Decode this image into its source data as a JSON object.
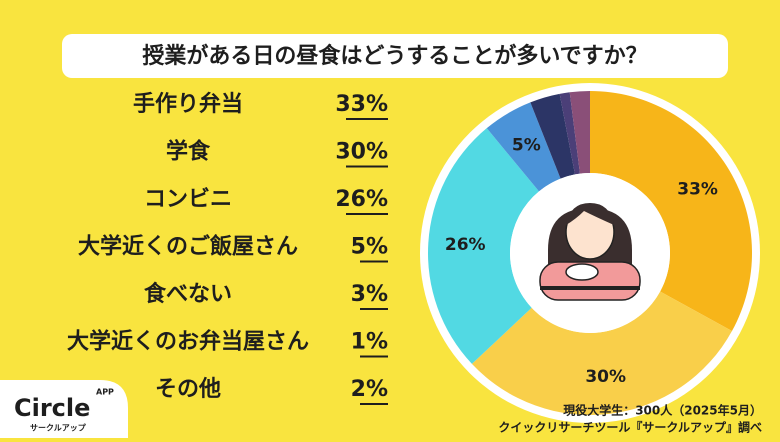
{
  "chart_data": {
    "type": "pie",
    "donut": true,
    "title": "授業がある日の昼食はどうすることが多いですか？",
    "categories": [
      "手作り弁当",
      "学食",
      "コンビニ",
      "大学近くのご飯屋さん",
      "食べない",
      "大学近くのお弁当屋さん",
      "その他"
    ],
    "values": [
      33,
      30,
      26,
      5,
      3,
      1,
      2
    ],
    "value_labels": [
      "33%",
      "30%",
      "26%",
      "5%",
      "3%",
      "1%",
      "2%"
    ],
    "colors": [
      "#f7b519",
      "#f9cf4a",
      "#52d9e3",
      "#4b93d8",
      "#2c3566",
      "#4b3f78",
      "#8a4f78"
    ],
    "source": [
      "現役大学生：300人（2025年5月）",
      "クイックリサーチツール『サークルアップ』調べ"
    ]
  },
  "logo": {
    "name": "Circle",
    "badge": "APP",
    "kana": "サークルアップ"
  }
}
